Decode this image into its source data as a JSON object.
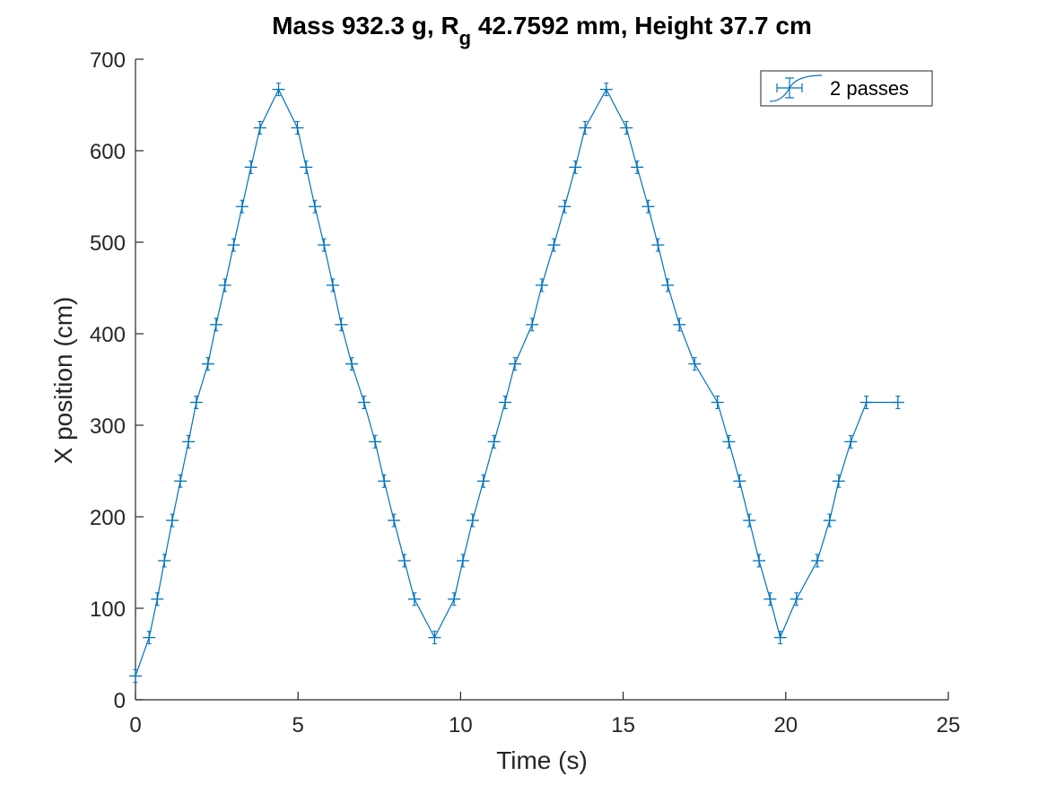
{
  "chart_data": {
    "type": "line",
    "title": {
      "prefix": "Mass 932.3 g, R",
      "subscript": "g",
      "suffix": " 42.7592 mm,  Height 37.7 cm"
    },
    "xlabel": "Time (s)",
    "ylabel": "X position (cm)",
    "xlim": [
      0,
      25
    ],
    "ylim": [
      0,
      700
    ],
    "xticks": [
      0,
      5,
      10,
      15,
      20,
      25
    ],
    "yticks": [
      0,
      100,
      200,
      300,
      400,
      500,
      600,
      700
    ],
    "grid": false,
    "legend_position": "top-right",
    "marker": "errorbar-plus",
    "color": "#0072BD",
    "series": [
      {
        "name": "2 passes",
        "x": [
          0.0,
          0.42,
          0.67,
          0.89,
          1.13,
          1.38,
          1.63,
          1.87,
          2.23,
          2.48,
          2.75,
          3.02,
          3.28,
          3.55,
          3.83,
          4.4,
          4.98,
          5.25,
          5.52,
          5.8,
          6.07,
          6.33,
          6.65,
          7.03,
          7.37,
          7.65,
          7.95,
          8.27,
          8.58,
          9.2,
          9.8,
          10.07,
          10.37,
          10.7,
          11.03,
          11.37,
          11.67,
          12.2,
          12.5,
          12.87,
          13.2,
          13.53,
          13.83,
          14.48,
          15.1,
          15.43,
          15.77,
          16.07,
          16.37,
          16.73,
          17.2,
          17.9,
          18.25,
          18.58,
          18.88,
          19.18,
          19.52,
          19.83,
          20.33,
          20.97,
          21.35,
          21.63,
          22.0,
          22.48,
          23.45
        ],
        "values": [
          26,
          68,
          110,
          152,
          196,
          239,
          282,
          325,
          367,
          410,
          453,
          497,
          539,
          582,
          625,
          667,
          625,
          582,
          539,
          497,
          453,
          410,
          367,
          325,
          282,
          239,
          196,
          152,
          110,
          68,
          110,
          152,
          196,
          239,
          282,
          325,
          367,
          410,
          453,
          497,
          539,
          582,
          625,
          667,
          625,
          582,
          539,
          497,
          453,
          410,
          367,
          325,
          282,
          239,
          196,
          152,
          110,
          68,
          110,
          152,
          196,
          239,
          282,
          325,
          325
        ]
      }
    ]
  }
}
